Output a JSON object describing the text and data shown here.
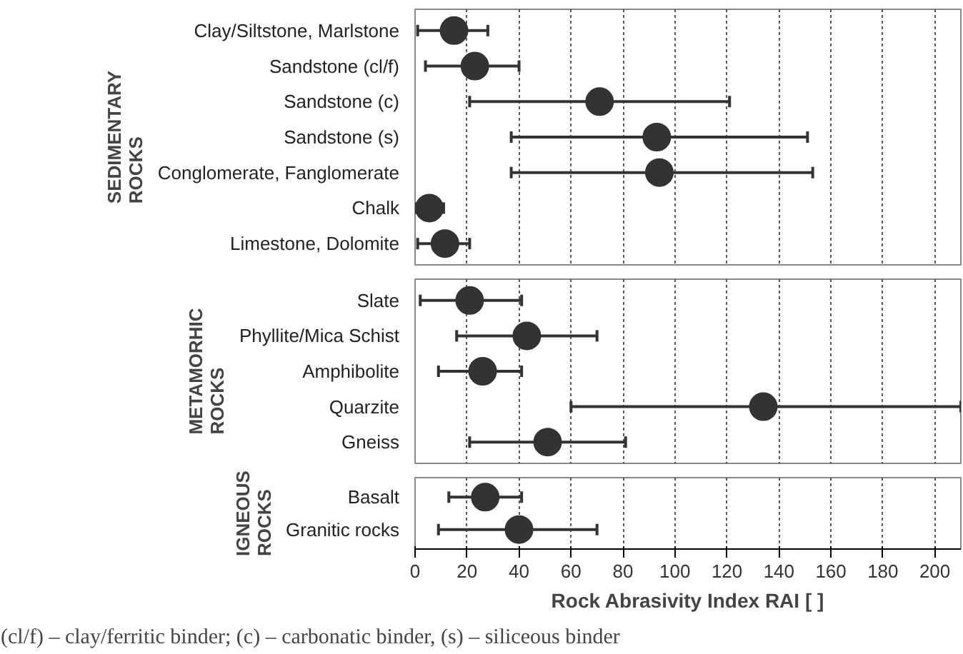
{
  "chart_data": [
    {
      "type": "scatter",
      "title": "SEDIMENTARY ROCKS",
      "orientation": "horizontal",
      "categories": [
        "Clay/Siltstone, Marlstone",
        "Sandstone (cl/f)",
        "Sandstone (c)",
        "Sandstone (s)",
        "Conglomerate, Fanglomerate",
        "Chalk",
        "Limestone, Dolomite"
      ],
      "values": [
        15,
        23,
        71,
        93,
        94,
        5.5,
        11.5
      ],
      "errors": [
        [
          1,
          28
        ],
        [
          4,
          40
        ],
        [
          21,
          121
        ],
        [
          37,
          151
        ],
        [
          37,
          153
        ],
        [
          0,
          11
        ],
        [
          1,
          21
        ]
      ],
      "color": "#333333",
      "marker": "circle",
      "grid": "x",
      "xlim": [
        0,
        210
      ],
      "xticks": [
        0,
        20,
        40,
        60,
        80,
        100,
        120,
        140,
        160,
        180,
        200
      ],
      "tick_labels": "y"
    },
    {
      "type": "scatter",
      "title": "METAMORHIC ROCKS",
      "orientation": "horizontal",
      "categories": [
        "Slate",
        "Phyllite/Mica Schist",
        "Amphibolite",
        "Quarzite",
        "Gneiss"
      ],
      "values": [
        21,
        43,
        26,
        134,
        51
      ],
      "errors": [
        [
          2,
          41
        ],
        [
          16,
          70
        ],
        [
          9,
          41
        ],
        [
          60,
          210
        ],
        [
          21,
          81
        ]
      ],
      "color": "#333333",
      "marker": "circle",
      "grid": "x",
      "xlim": [
        0,
        210
      ],
      "xticks": [
        0,
        20,
        40,
        60,
        80,
        100,
        120,
        140,
        160,
        180,
        200
      ],
      "tick_labels": "y"
    },
    {
      "type": "scatter",
      "title": "IGNEOUS ROCKS",
      "orientation": "horizontal",
      "categories": [
        "Basalt",
        "Granitic rocks"
      ],
      "values": [
        27,
        40
      ],
      "errors": [
        [
          13,
          41
        ],
        [
          9,
          70
        ]
      ],
      "color": "#333333",
      "marker": "circle",
      "grid": "x",
      "xlim": [
        0,
        210
      ],
      "xticks": [
        0,
        20,
        40,
        60,
        80,
        100,
        120,
        140,
        160,
        180,
        200
      ],
      "xlabel": "Rock Abrasivity Index RAI [ ]",
      "annotations": [
        "(cl/f) – clay/ferritic binder; (c) – carbonatic binder, (s) – siliceous binder"
      ]
    }
  ]
}
